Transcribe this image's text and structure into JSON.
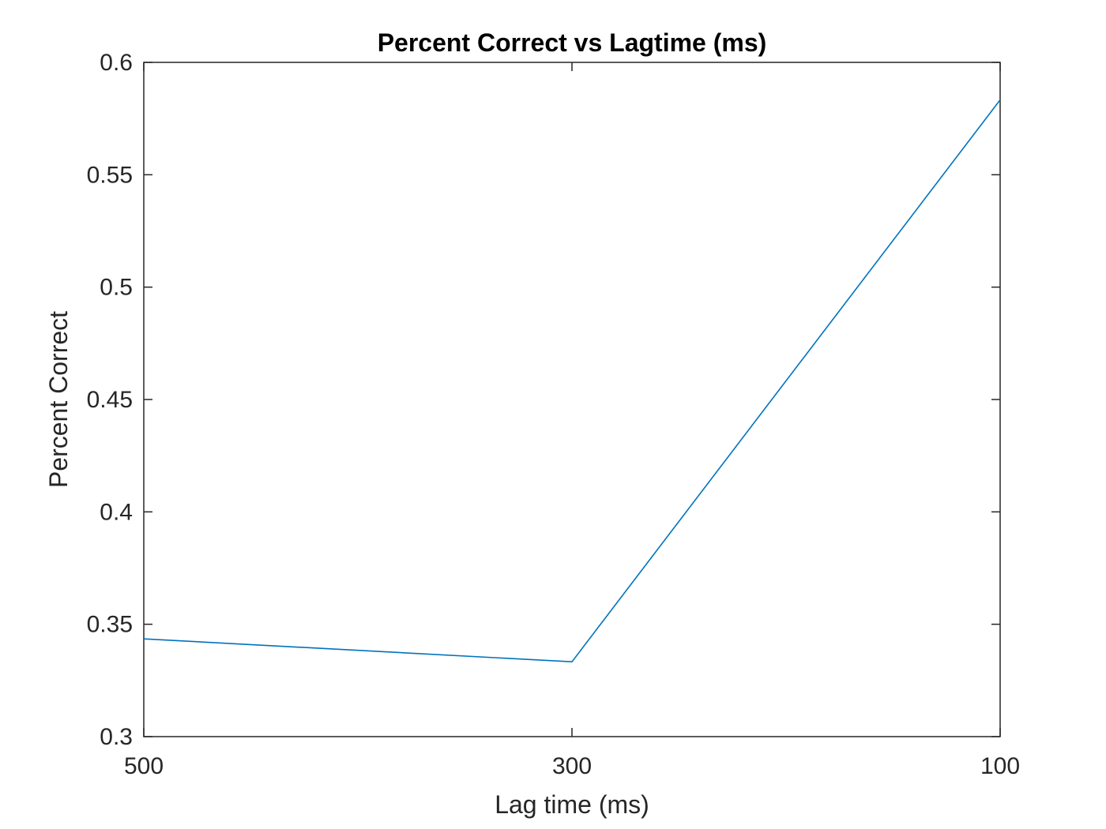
{
  "chart_data": {
    "type": "line",
    "title": "Percent Correct vs Lagtime (ms)",
    "xlabel": "Lag time (ms)",
    "ylabel": "Percent Correct",
    "x_reversed": true,
    "x_ticks": [
      500,
      300,
      100
    ],
    "x_tick_labels": [
      "500",
      "300",
      "100"
    ],
    "xlim": [
      500,
      100
    ],
    "ylim": [
      0.3,
      0.6
    ],
    "y_ticks": [
      0.3,
      0.35,
      0.4,
      0.45,
      0.5,
      0.55,
      0.6
    ],
    "y_tick_labels": [
      "0.3",
      "0.35",
      "0.4",
      "0.45",
      "0.5",
      "0.55",
      "0.6"
    ],
    "grid": false,
    "series": [
      {
        "color": "#0072bd",
        "x": [
          500,
          300,
          100
        ],
        "y": [
          0.3435,
          0.3333,
          0.5833
        ]
      }
    ]
  }
}
